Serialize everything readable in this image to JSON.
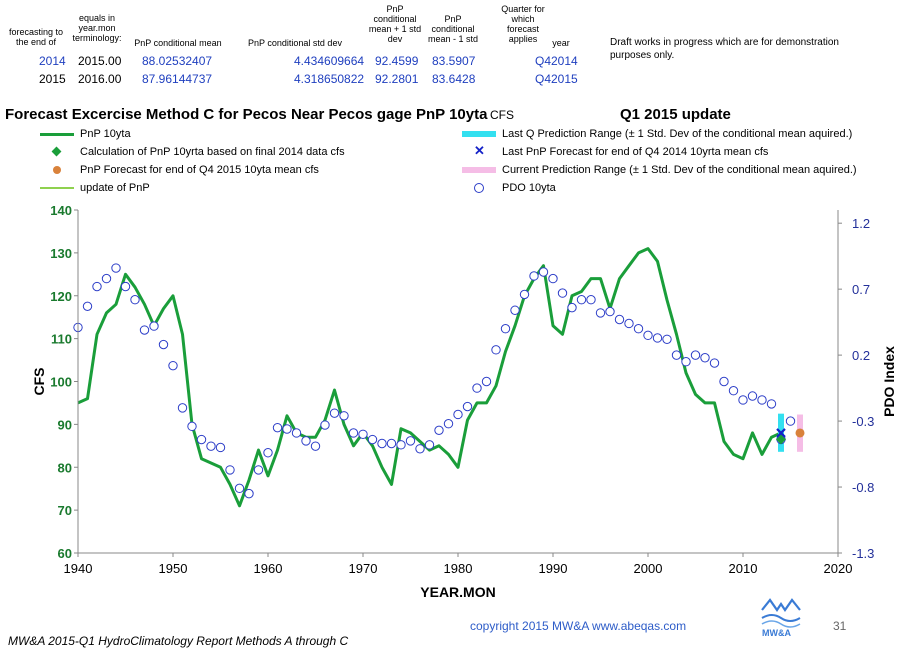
{
  "table": {
    "headers": {
      "forecasting": "forecasting to the end of",
      "equals": "equals in year.mon terminology:",
      "mean": "PnP conditional  mean",
      "std": "PnP conditional  std dev",
      "plus": "PnP conditional mean + 1 std dev",
      "minus": "PnP conditional mean - 1 std",
      "quarter": "Quarter for which forecast applies",
      "year": "year"
    },
    "rows": [
      {
        "end": "2014",
        "yearmon": "2015.00",
        "mean": "88.02532407",
        "std": "4.434609664",
        "plus": "92.4599",
        "minus": "83.5907",
        "quarter": "Q42014"
      },
      {
        "end": "2015",
        "yearmon": "2016.00",
        "mean": "87.96144737",
        "std": "4.318650822",
        "plus": "92.2801",
        "minus": "83.6428",
        "quarter": "Q42015"
      }
    ]
  },
  "note": "Draft works in progress which are for demonstration purposes only.",
  "title": "Forecast Excercise  Method C for Pecos Near Pecos gage PnP 10yta",
  "unit": "CFS",
  "update": "Q1 2015 update",
  "legend": {
    "left": [
      "PnP 10yta",
      "Calculation of PnP 10yrta based on final 2014 data cfs",
      "PnP Forecast for end of Q4 2015 10yta mean cfs",
      "update of PnP"
    ],
    "right": [
      "Last Q Prediction Range (± 1 Std. Dev of the conditional mean aquired.)",
      "Last PnP Forecast for end of Q4 2014 10yrta mean cfs",
      "Current Prediction Range  (± 1 Std. Dev of the conditional mean aquired.)",
      "PDO 10yta"
    ]
  },
  "footer": {
    "left": "MW&A 2015-Q1  HydroClimatology Report Methods A through C",
    "copyright": "copyright 2015   MW&A www.abeqas.com",
    "page": "31",
    "logo": "MW&A"
  },
  "colors": {
    "pnp": "#1a9e3a",
    "pdo": "#2d3ec8",
    "lastRange": "#33e0f0",
    "curRange": "#f5bde6",
    "forecast": "#d9823b",
    "update": "#8fd14f",
    "axisLeft": "#1a7a2e",
    "axisRight": "#23309a"
  },
  "chart_data": {
    "type": "line",
    "xlabel": "YEAR.MON",
    "ylabel": "CFS",
    "y2label": "PDO Index",
    "xlim": [
      1940,
      2020
    ],
    "ylim": [
      60,
      140
    ],
    "y2lim": [
      -1.3,
      1.3
    ],
    "xticks": [
      1940,
      1950,
      1960,
      1970,
      1980,
      1990,
      2000,
      2010,
      2020
    ],
    "yticks": [
      60,
      70,
      80,
      90,
      100,
      110,
      120,
      130,
      140
    ],
    "y2ticks": [
      -1.3,
      -0.8,
      -0.3,
      0.2,
      0.7,
      1.2
    ],
    "series": [
      {
        "name": "PnP 10yta",
        "x": [
          1940,
          1941,
          1942,
          1943,
          1944,
          1945,
          1946,
          1947,
          1948,
          1949,
          1950,
          1951,
          1952,
          1953,
          1954,
          1955,
          1956,
          1957,
          1958,
          1959,
          1960,
          1961,
          1962,
          1963,
          1964,
          1965,
          1966,
          1967,
          1968,
          1969,
          1970,
          1971,
          1972,
          1973,
          1974,
          1975,
          1976,
          1977,
          1978,
          1979,
          1980,
          1981,
          1982,
          1983,
          1984,
          1985,
          1986,
          1987,
          1988,
          1989,
          1990,
          1991,
          1992,
          1993,
          1994,
          1995,
          1996,
          1997,
          1998,
          1999,
          2000,
          2001,
          2002,
          2003,
          2004,
          2005,
          2006,
          2007,
          2008,
          2009,
          2010,
          2011,
          2012,
          2013,
          2014
        ],
        "y": [
          95,
          96,
          111,
          116,
          118,
          125,
          122,
          118,
          113,
          117,
          120,
          111,
          90,
          82,
          81,
          80,
          76,
          71,
          77,
          84,
          78,
          84,
          92,
          88,
          87,
          87,
          91,
          98,
          90,
          85,
          88,
          85,
          80,
          76,
          89,
          88,
          86,
          84,
          85,
          83,
          80,
          91,
          95,
          95,
          99,
          107,
          113,
          120,
          124,
          127,
          113,
          111,
          120,
          121,
          124,
          124,
          117,
          124,
          127,
          130,
          131,
          128,
          119,
          111,
          102,
          97,
          95,
          95,
          86,
          83,
          82,
          88,
          83,
          87,
          88
        ]
      },
      {
        "name": "PDO 10yta",
        "x": [
          1940,
          1941,
          1942,
          1943,
          1944,
          1945,
          1946,
          1947,
          1948,
          1949,
          1950,
          1951,
          1952,
          1953,
          1954,
          1955,
          1956,
          1957,
          1958,
          1959,
          1960,
          1961,
          1962,
          1963,
          1964,
          1965,
          1966,
          1967,
          1968,
          1969,
          1970,
          1971,
          1972,
          1973,
          1974,
          1975,
          1976,
          1977,
          1978,
          1979,
          1980,
          1981,
          1982,
          1983,
          1984,
          1985,
          1986,
          1987,
          1988,
          1989,
          1990,
          1991,
          1992,
          1993,
          1994,
          1995,
          1996,
          1997,
          1998,
          1999,
          2000,
          2001,
          2002,
          2003,
          2004,
          2005,
          2006,
          2007,
          2008,
          2009,
          2010,
          2011,
          2012,
          2013
        ],
        "y": [
          0.41,
          0.57,
          0.72,
          0.78,
          0.86,
          0.72,
          0.62,
          0.39,
          0.42,
          0.28,
          0.12,
          -0.2,
          -0.34,
          -0.44,
          -0.49,
          -0.5,
          -0.67,
          -0.81,
          -0.85,
          -0.67,
          -0.54,
          -0.35,
          -0.36,
          -0.39,
          -0.45,
          -0.49,
          -0.33,
          -0.24,
          -0.26,
          -0.39,
          -0.4,
          -0.44,
          -0.47,
          -0.47,
          -0.48,
          -0.45,
          -0.51,
          -0.48,
          -0.37,
          -0.32,
          -0.25,
          -0.19,
          -0.05,
          0.0,
          0.24,
          0.4,
          0.54,
          0.66,
          0.8,
          0.83,
          0.78,
          0.67,
          0.56,
          0.62,
          0.62,
          0.52,
          0.53,
          0.47,
          0.44,
          0.4,
          0.35,
          0.33,
          0.32,
          0.2,
          0.15,
          0.2,
          0.18,
          0.14,
          0.0,
          -0.07,
          -0.14,
          -0.11,
          -0.14,
          -0.17
        ]
      }
    ],
    "points": {
      "calculation2014": {
        "x": 2014,
        "y": 86.5
      },
      "lastForecast": {
        "x": 2014,
        "y": 88.0
      },
      "forecast2015": {
        "x": 2016,
        "y": 88.0
      },
      "pdoLast": {
        "x": 2015,
        "y": -0.3
      },
      "lastRange": {
        "x": 2014,
        "low": 83.6,
        "high": 92.5
      },
      "curRange": {
        "x": 2016,
        "low": 83.6,
        "high": 92.3
      }
    }
  }
}
